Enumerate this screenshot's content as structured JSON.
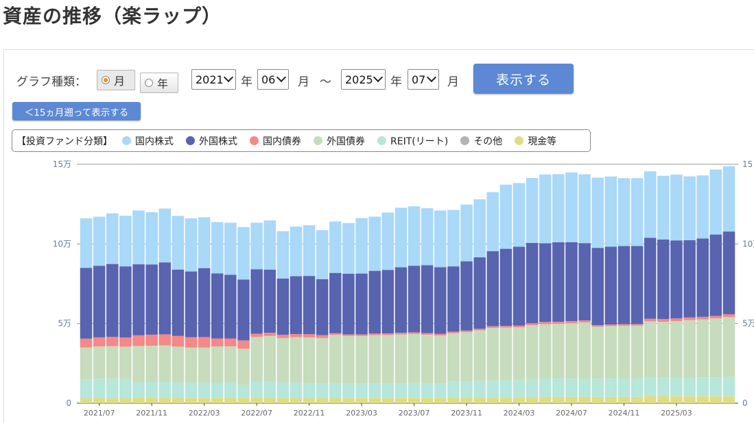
{
  "page_title": "資産の推移（楽ラップ）",
  "controls": {
    "graph_type_label": "グラフ種類：",
    "radio_month": "月",
    "radio_year": "年",
    "start_year": "2021",
    "start_month": "06",
    "end_year": "2025",
    "end_month": "07",
    "year_unit": "年",
    "month_unit": "月",
    "range_sep": "～",
    "show_button": "表示する",
    "back_button": "＜15ヵ月遡って表示する"
  },
  "legend": {
    "title": "【投資ファンド分類】",
    "items": [
      {
        "label": "国内株式",
        "color": "#a9d8f8"
      },
      {
        "label": "外国株式",
        "color": "#5864b0"
      },
      {
        "label": "国内債券",
        "color": "#f58888"
      },
      {
        "label": "外国債券",
        "color": "#c6dcbc"
      },
      {
        "label": "REIT(リート)",
        "color": "#b7e6da"
      },
      {
        "label": "その他",
        "color": "#b3b3b3"
      },
      {
        "label": "現金等",
        "color": "#e0dc86"
      }
    ]
  },
  "chart_data": {
    "type": "bar",
    "stacked": true,
    "ylim": [
      0,
      150000
    ],
    "y_ticks": [
      "0",
      "5万",
      "10万",
      "15万"
    ],
    "y_tick_values": [
      0,
      50000,
      100000,
      150000
    ],
    "right_y_ticks": [
      "0",
      "5万",
      "10万",
      "15"
    ],
    "x_tick_labels": [
      "2021/07",
      "2021/11",
      "2022/03",
      "2022/07",
      "2022/11",
      "2023/03",
      "2023/07",
      "2023/11",
      "2024/03",
      "2024/07",
      "2024/11",
      "2025/03"
    ],
    "categories": [
      "2021/06",
      "2021/07",
      "2021/08",
      "2021/09",
      "2021/10",
      "2021/11",
      "2021/12",
      "2022/01",
      "2022/02",
      "2022/03",
      "2022/04",
      "2022/05",
      "2022/06",
      "2022/07",
      "2022/08",
      "2022/09",
      "2022/10",
      "2022/11",
      "2022/12",
      "2023/01",
      "2023/02",
      "2023/03",
      "2023/04",
      "2023/05",
      "2023/06",
      "2023/07",
      "2023/08",
      "2023/09",
      "2023/10",
      "2023/11",
      "2023/12",
      "2024/01",
      "2024/02",
      "2024/03",
      "2024/04",
      "2024/05",
      "2024/06",
      "2024/07",
      "2024/08",
      "2024/09",
      "2024/10",
      "2024/11",
      "2024/12",
      "2025/01",
      "2025/02",
      "2025/03",
      "2025/04",
      "2025/05",
      "2025/06",
      "2025/07"
    ],
    "series": [
      {
        "name": "現金等",
        "color": "#e0dc86",
        "values": [
          3000,
          3200,
          3000,
          3000,
          3500,
          3500,
          3500,
          3400,
          3300,
          3300,
          3300,
          3400,
          3300,
          3500,
          3400,
          3300,
          3200,
          3200,
          3200,
          3200,
          3300,
          3300,
          3300,
          3300,
          3300,
          3300,
          3300,
          3300,
          3500,
          3600,
          3700,
          3800,
          3800,
          3800,
          3900,
          4000,
          4000,
          4000,
          4000,
          4000,
          4000,
          4000,
          4000,
          4600,
          4500,
          4400,
          4400,
          4400,
          4400,
          4400
        ]
      },
      {
        "name": "その他",
        "color": "#b3b3b3",
        "values": [
          0,
          0,
          0,
          0,
          0,
          0,
          0,
          0,
          0,
          0,
          0,
          0,
          0,
          0,
          0,
          0,
          0,
          0,
          0,
          0,
          0,
          0,
          0,
          0,
          0,
          0,
          0,
          0,
          0,
          0,
          0,
          0,
          0,
          0,
          0,
          0,
          0,
          0,
          0,
          0,
          0,
          0,
          0,
          0,
          0,
          0,
          0,
          0,
          0,
          0
        ]
      },
      {
        "name": "REIT(リート)",
        "color": "#b7e6da",
        "values": [
          12000,
          12200,
          12400,
          12200,
          9600,
          9800,
          9800,
          9600,
          9500,
          9600,
          9600,
          9700,
          8000,
          10000,
          10000,
          9700,
          9600,
          9500,
          9200,
          9500,
          9100,
          9100,
          9200,
          9100,
          9200,
          9300,
          9200,
          9100,
          10200,
          10000,
          10500,
          10700,
          10800,
          11000,
          11300,
          11500,
          11400,
          11400,
          11500,
          11400,
          11400,
          11500,
          11500,
          11700,
          11700,
          11500,
          11500,
          11800,
          11800,
          12000
        ]
      },
      {
        "name": "外国債券",
        "color": "#c6dcbc",
        "values": [
          20000,
          20200,
          20400,
          20300,
          22800,
          22800,
          23000,
          22500,
          22100,
          22000,
          22700,
          22500,
          22900,
          28100,
          28800,
          27900,
          28600,
          28600,
          28500,
          30200,
          29800,
          29800,
          30200,
          30400,
          30700,
          30900,
          30500,
          30100,
          30200,
          31000,
          31500,
          32800,
          32900,
          32900,
          33800,
          34100,
          34400,
          34800,
          35200,
          32600,
          33000,
          33100,
          33200,
          35100,
          34900,
          35600,
          36300,
          36400,
          37000,
          37700
        ]
      },
      {
        "name": "国内債券",
        "color": "#f58888",
        "values": [
          5500,
          5700,
          5800,
          5700,
          6700,
          6900,
          6900,
          6700,
          6500,
          6600,
          5000,
          5000,
          5200,
          2000,
          2000,
          2000,
          2000,
          2000,
          1800,
          1000,
          1000,
          1000,
          1000,
          1000,
          1000,
          1000,
          1000,
          1000,
          1000,
          1000,
          1000,
          1000,
          1000,
          1000,
          1200,
          1400,
          1300,
          1300,
          1300,
          1000,
          1000,
          1000,
          1000,
          1600,
          1700,
          1700,
          1600,
          1600,
          1600,
          1700
        ]
      },
      {
        "name": "外国株式",
        "color": "#5864b0",
        "values": [
          44500,
          45000,
          45800,
          44700,
          44600,
          44100,
          45200,
          41700,
          41300,
          43300,
          40900,
          40000,
          38200,
          40500,
          39600,
          35400,
          36300,
          36600,
          35200,
          37900,
          38100,
          38200,
          39400,
          39900,
          41100,
          41800,
          42600,
          41900,
          41000,
          43500,
          44900,
          47100,
          48400,
          49500,
          50400,
          49400,
          49900,
          49600,
          48500,
          48500,
          48900,
          49100,
          49000,
          50800,
          50000,
          49000,
          48500,
          49200,
          51100,
          52000
        ]
      },
      {
        "name": "国内株式",
        "color": "#a9d8f8",
        "values": [
          31000,
          30800,
          31800,
          31800,
          33800,
          32800,
          33800,
          33700,
          33400,
          31900,
          32200,
          32700,
          33000,
          29200,
          30900,
          29700,
          31200,
          31800,
          30700,
          32300,
          31800,
          34800,
          34000,
          36000,
          37400,
          37300,
          35800,
          35600,
          35400,
          35600,
          36400,
          37100,
          40300,
          40000,
          40800,
          43200,
          42800,
          43800,
          43200,
          44100,
          44000,
          42600,
          42600,
          41800,
          40000,
          41300,
          40100,
          39600,
          40800,
          41000
        ]
      }
    ]
  }
}
